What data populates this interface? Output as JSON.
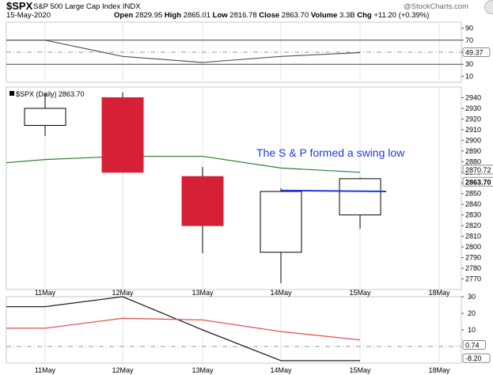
{
  "header": {
    "symbol": "$SPX",
    "name": "S&P 500 Large Cap Index INDX",
    "date": "15-May-2020",
    "credit": "@StockCharts.com",
    "quote": {
      "open_label": "Open",
      "open": "2829.95",
      "high_label": "High",
      "high": "2865.01",
      "low_label": "Low",
      "low": "2816.78",
      "close_label": "Close",
      "close": "2863.70",
      "volume_label": "Volume",
      "volume": "3.3B",
      "chg_label": "Chg",
      "chg": "+11.20 (+0.39%)"
    }
  },
  "chart_data": [
    {
      "type": "line",
      "panel": "top-indicator",
      "x": [
        "11May",
        "12May",
        "13May",
        "14May",
        "15May"
      ],
      "series": [
        {
          "values": [
            70,
            43,
            33,
            43,
            49.37
          ]
        }
      ],
      "ylim": [
        0,
        100
      ],
      "yticks": [
        90,
        70,
        50,
        30,
        10
      ],
      "reference_lines": [
        70,
        50,
        30
      ],
      "last_value_label": "49.37",
      "grid": false
    },
    {
      "type": "candlestick",
      "panel": "price",
      "legend": "$SPX (Daily) 2863.70",
      "x": [
        "11May",
        "12May",
        "13May",
        "14May",
        "15May",
        "18May"
      ],
      "candles": [
        {
          "date": "11May",
          "open": 2914,
          "high": 2944,
          "low": 2904,
          "close": 2930,
          "color": "#ffffff"
        },
        {
          "date": "12May",
          "open": 2940,
          "high": 2945,
          "low": 2870,
          "close": 2870,
          "color": "#d62036"
        },
        {
          "date": "13May",
          "open": 2866,
          "high": 2875,
          "low": 2794,
          "close": 2820,
          "color": "#d62036"
        },
        {
          "date": "14May",
          "open": 2795,
          "high": 2855,
          "low": 2766,
          "close": 2852,
          "color": "#ffffff"
        },
        {
          "date": "15May",
          "open": 2830,
          "high": 2865,
          "low": 2817,
          "close": 2864,
          "color": "#ffffff"
        }
      ],
      "moving_average": {
        "color": "#2e7d32",
        "values": [
          2882,
          2885,
          2885,
          2874,
          2870,
          2872
        ]
      },
      "swing_low_line": {
        "color": "#1f3bd6",
        "value": 2853,
        "from": "14May",
        "to": "15May"
      },
      "annotation": "The S & P formed a swing low",
      "ylim": [
        2760,
        2950
      ],
      "yticks": [
        2940,
        2930,
        2920,
        2910,
        2900,
        2890,
        2880,
        2870,
        2860,
        2850,
        2840,
        2830,
        2820,
        2810,
        2800,
        2790,
        2780,
        2770
      ],
      "last_value_labels": [
        "2870.72",
        "2863.70"
      ]
    },
    {
      "type": "line",
      "panel": "bottom-indicator",
      "x": [
        "11May",
        "12May",
        "13May",
        "14May",
        "15May",
        "18May"
      ],
      "series": [
        {
          "color": "#222222",
          "values": [
            24,
            30,
            10,
            -8.5,
            -8.5,
            -8.2
          ]
        },
        {
          "color": "#e05555",
          "values": [
            11,
            17,
            16,
            9,
            4,
            0.74
          ]
        }
      ],
      "ylim": [
        -10,
        30
      ],
      "yticks": [
        30,
        20,
        10
      ],
      "reference_lines": [
        0
      ],
      "last_value_labels": [
        "0.74",
        "-8.20"
      ]
    }
  ],
  "x_labels": [
    "11May",
    "12May",
    "13May",
    "14May",
    "15May",
    "18May"
  ]
}
